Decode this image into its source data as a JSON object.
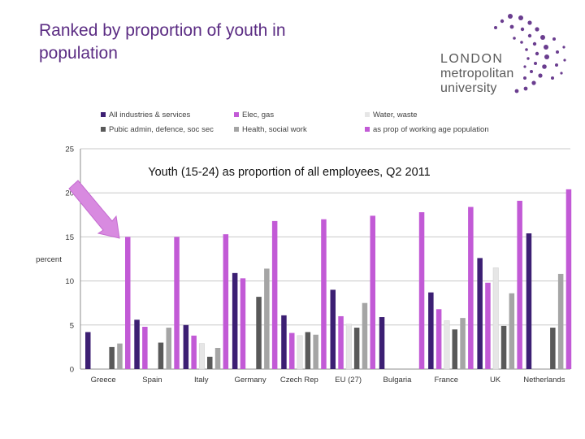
{
  "title": "Ranked by proportion of youth in population",
  "logo": {
    "line1": "LONDON",
    "line2": "metropolitan",
    "line3": "university",
    "color": "#6a3d8f"
  },
  "colors": {
    "All industries & services": "#3c1f73",
    "Elec, gas": "#c25ad6",
    "Water, waste": "#e6e6e6",
    "Pubic admin, defence, soc sec": "#595959",
    "Health, social work": "#a5a5a5",
    "as prop of working age population": "#c25ad6",
    "arrow": "#d88ae0"
  },
  "chart_data": {
    "type": "bar",
    "title": "Youth (15-24) as proportion of all employees, Q2 2011",
    "ylabel": "percent",
    "xlabel": "",
    "ylim": [
      0,
      25
    ],
    "yticks": [
      "0",
      "5",
      "10",
      "15",
      "20",
      "25"
    ],
    "grid": true,
    "legend_position": "top",
    "categories": [
      "Greece",
      "Spain",
      "Italy",
      "Germany",
      "Czech Rep",
      "EU (27)",
      "Bulgaria",
      "France",
      "UK",
      "Netherlands"
    ],
    "series": [
      {
        "name": "All industries & services",
        "values": [
          4.2,
          5.6,
          5.0,
          10.9,
          6.1,
          9.0,
          5.9,
          8.7,
          12.6,
          15.4
        ]
      },
      {
        "name": "Elec, gas",
        "values": [
          null,
          4.8,
          3.8,
          10.3,
          4.1,
          6.0,
          null,
          6.8,
          9.8,
          null
        ]
      },
      {
        "name": "Water, waste",
        "values": [
          null,
          null,
          2.9,
          null,
          3.8,
          5.1,
          null,
          5.5,
          11.5,
          null
        ]
      },
      {
        "name": "Pubic admin, defence, soc sec",
        "values": [
          2.5,
          3.0,
          1.4,
          8.2,
          4.2,
          4.7,
          null,
          4.5,
          4.9,
          4.7
        ]
      },
      {
        "name": "Health, social work",
        "values": [
          2.9,
          4.7,
          2.4,
          11.4,
          3.9,
          7.5,
          null,
          5.8,
          8.6,
          10.8
        ]
      },
      {
        "name": "as prop of working age population",
        "values": [
          15.0,
          15.0,
          15.3,
          16.8,
          17.0,
          17.4,
          17.8,
          18.4,
          19.1,
          20.4
        ]
      }
    ],
    "legend": [
      "All industries & services",
      "Elec, gas",
      "Water, waste",
      "Pubic admin, defence, soc sec",
      "Health, social work",
      "as prop of working age population"
    ]
  }
}
